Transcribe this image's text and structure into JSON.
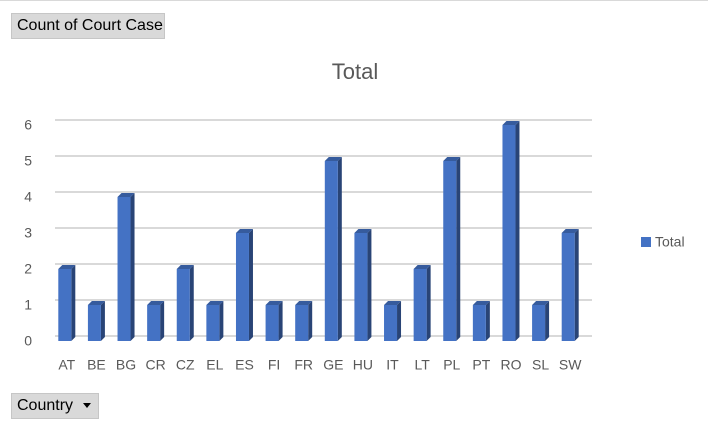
{
  "pivot": {
    "value_field": "Count of Court Case",
    "axis_field": "Country"
  },
  "chart_data": {
    "type": "bar",
    "title": "Total",
    "categories": [
      "AT",
      "BE",
      "BG",
      "CR",
      "CZ",
      "EL",
      "ES",
      "FI",
      "FR",
      "GE",
      "HU",
      "IT",
      "LT",
      "PL",
      "PT",
      "RO",
      "SL",
      "SW"
    ],
    "series": [
      {
        "name": "Total",
        "color": "#4472c4",
        "values": [
          2,
          1,
          4,
          1,
          2,
          1,
          3,
          1,
          1,
          5,
          3,
          1,
          2,
          5,
          1,
          6,
          1,
          3
        ]
      }
    ],
    "ylim": [
      0,
      6
    ],
    "yticks": [
      0,
      1,
      2,
      3,
      4,
      5,
      6
    ],
    "grid": true,
    "legend": "right"
  }
}
